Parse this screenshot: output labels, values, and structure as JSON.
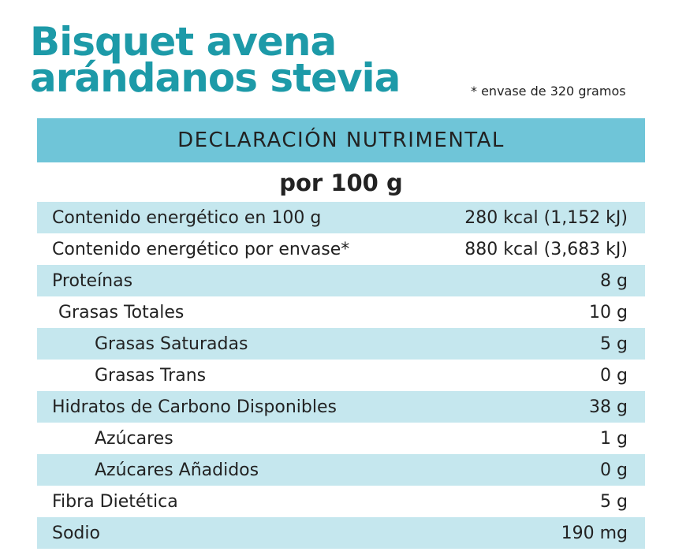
{
  "title": [
    "Bisquet avena",
    "arándanos stevia"
  ],
  "note": "* envase de 320 gramos",
  "table": {
    "header": "DECLARACIÓN NUTRIMENTAL",
    "subheader": "por 100 g",
    "rows": [
      [
        "Contenido energético en 100 g",
        "280 kcal (1,152 kJ)"
      ],
      [
        "Contenido energético por envase*",
        "880 kcal (3,683 kJ)"
      ],
      [
        "Proteínas",
        "8 g"
      ],
      [
        "Grasas Totales",
        "10 g"
      ],
      [
        "Grasas Saturadas",
        "5 g"
      ],
      [
        "Grasas Trans",
        "0 g"
      ],
      [
        "Hidratos de Carbono Disponibles",
        "38 g"
      ],
      [
        "Azúcares",
        "1 g"
      ],
      [
        "Azúcares Añadidos",
        "0 g"
      ],
      [
        "Fibra Dietética",
        "5 g"
      ],
      [
        "Sodio",
        "190 mg"
      ]
    ]
  }
}
